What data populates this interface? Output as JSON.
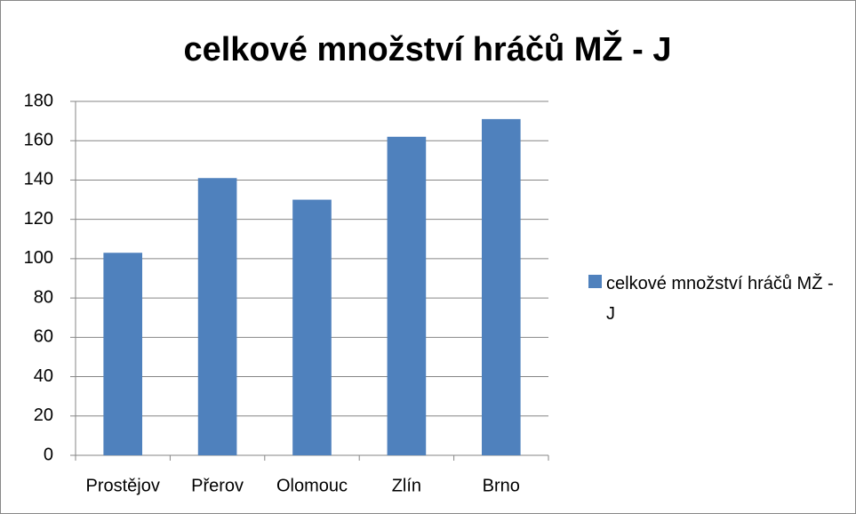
{
  "chart_data": {
    "type": "bar",
    "title": "celkové množství hráčů MŽ - J",
    "categories": [
      "Prostějov",
      "Přerov",
      "Olomouc",
      "Zlín",
      "Brno"
    ],
    "series": [
      {
        "name": "celkové množství hráčů MŽ - J",
        "color": "#4f81bd",
        "values": [
          103,
          141,
          130,
          162,
          171
        ]
      }
    ],
    "ylim": [
      0,
      180
    ],
    "yticks": [
      0,
      20,
      40,
      60,
      80,
      100,
      120,
      140,
      160,
      180
    ],
    "grid": true,
    "legend": "right"
  }
}
